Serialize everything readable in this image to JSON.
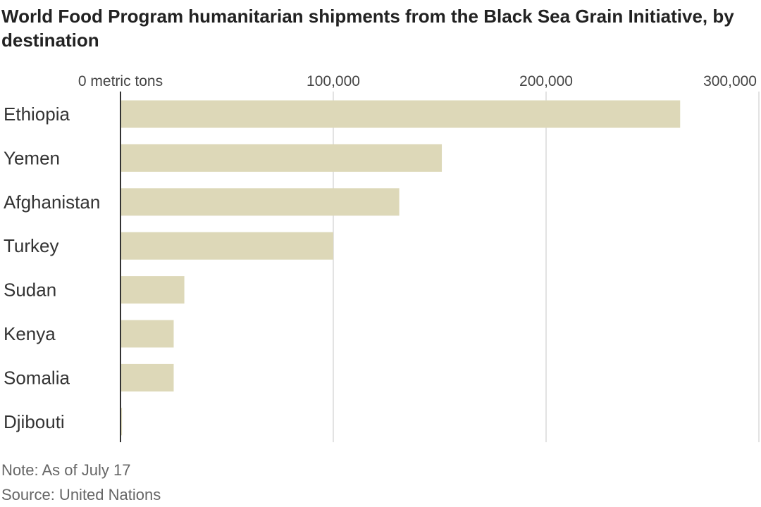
{
  "chart_data": {
    "type": "bar",
    "orientation": "horizontal",
    "title": "World Food Program humanitarian shipments from the Black Sea Grain Initiative, by destination",
    "categories": [
      "Ethiopia",
      "Yemen",
      "Afghanistan",
      "Turkey",
      "Sudan",
      "Kenya",
      "Somalia",
      "Djibouti"
    ],
    "values": [
      263000,
      151000,
      131000,
      100000,
      30000,
      25000,
      25000,
      700
    ],
    "xlim": [
      0,
      300000
    ],
    "ticks": [
      0,
      100000,
      200000,
      300000
    ],
    "tick_labels": [
      "0 metric tons",
      "100,000",
      "200,000",
      "300,000"
    ],
    "grid": true,
    "bar_color": "#ddd8b8",
    "note": "Note: As of July 17",
    "source": "Source: United Nations"
  }
}
